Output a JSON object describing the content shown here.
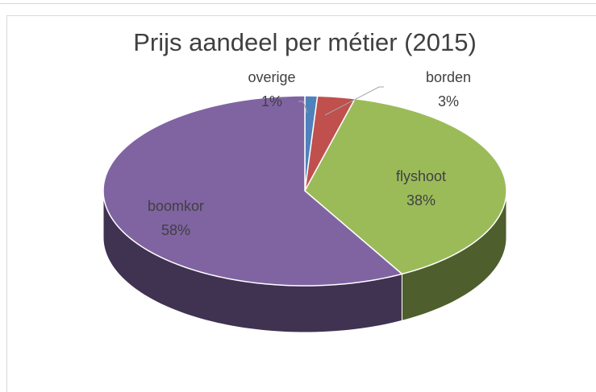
{
  "chart_data": {
    "type": "pie3d",
    "title": "Prijs aandeel per métier (2015)",
    "categories": [
      "overige",
      "borden",
      "flyshoot",
      "boomkor"
    ],
    "values": [
      1,
      3,
      38,
      58
    ],
    "value_labels": [
      "1%",
      "3%",
      "38%",
      "58%"
    ],
    "colors": [
      "#4f81bd",
      "#c0504d",
      "#9bbb59",
      "#8064a2"
    ]
  }
}
